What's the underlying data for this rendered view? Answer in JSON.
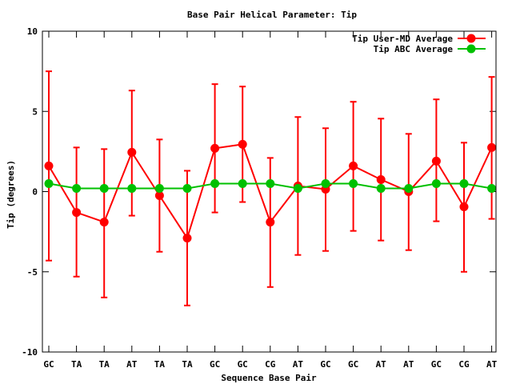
{
  "chart_data": {
    "type": "line",
    "title": "Base Pair Helical Parameter: Tip",
    "xlabel": "Sequence Base Pair",
    "ylabel": "Tip (degrees)",
    "ylim": [
      -10,
      10
    ],
    "yticks": [
      -10,
      -5,
      0,
      5,
      10
    ],
    "categories": [
      "GC",
      "TA",
      "TA",
      "AT",
      "TA",
      "TA",
      "GC",
      "GC",
      "CG",
      "AT",
      "GC",
      "GC",
      "AT",
      "AT",
      "GC",
      "CG",
      "AT"
    ],
    "grid": false,
    "legend_position": "top-right",
    "series": [
      {
        "name": "Tip User-MD Average",
        "color": "#ff0000",
        "values": [
          1.6,
          -1.3,
          -1.9,
          2.45,
          -0.25,
          -2.9,
          2.7,
          2.95,
          -1.9,
          0.35,
          0.15,
          1.6,
          0.75,
          0.0,
          1.9,
          -0.95,
          2.75
        ],
        "error_low": [
          -4.3,
          -5.3,
          -6.6,
          -1.5,
          -3.75,
          -7.1,
          -1.3,
          -0.65,
          -5.95,
          -3.95,
          -3.7,
          -2.45,
          -3.05,
          -3.65,
          -1.85,
          -5.0,
          -1.7
        ],
        "error_high": [
          7.5,
          2.75,
          2.65,
          6.3,
          3.25,
          1.3,
          6.7,
          6.55,
          2.1,
          4.65,
          3.95,
          5.6,
          4.55,
          3.6,
          5.75,
          3.05,
          7.15
        ]
      },
      {
        "name": "Tip ABC Average",
        "color": "#00c000",
        "values": [
          0.5,
          0.2,
          0.2,
          0.2,
          0.2,
          0.2,
          0.5,
          0.5,
          0.5,
          0.2,
          0.5,
          0.5,
          0.2,
          0.2,
          0.5,
          0.5,
          0.2
        ]
      }
    ]
  }
}
